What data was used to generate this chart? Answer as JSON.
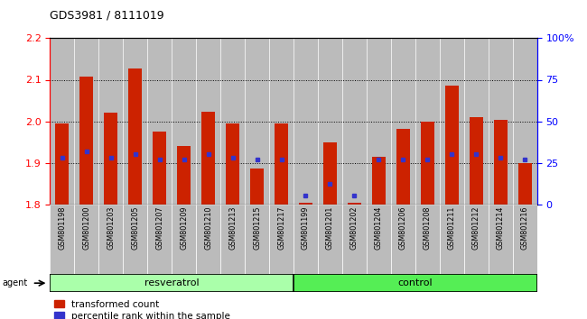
{
  "title": "GDS3981 / 8111019",
  "samples": [
    "GSM801198",
    "GSM801200",
    "GSM801203",
    "GSM801205",
    "GSM801207",
    "GSM801209",
    "GSM801210",
    "GSM801213",
    "GSM801215",
    "GSM801217",
    "GSM801199",
    "GSM801201",
    "GSM801202",
    "GSM801204",
    "GSM801206",
    "GSM801208",
    "GSM801211",
    "GSM801212",
    "GSM801214",
    "GSM801216"
  ],
  "red_values": [
    1.995,
    2.107,
    2.02,
    2.128,
    1.975,
    1.94,
    2.023,
    1.995,
    1.885,
    1.995,
    1.803,
    1.948,
    1.803,
    1.915,
    1.982,
    2.0,
    2.085,
    2.01,
    2.003,
    1.9
  ],
  "blue_values": [
    0.28,
    0.32,
    0.28,
    0.3,
    0.27,
    0.27,
    0.3,
    0.28,
    0.27,
    0.27,
    0.05,
    0.12,
    0.05,
    0.27,
    0.27,
    0.27,
    0.3,
    0.3,
    0.28,
    0.27
  ],
  "group_labels": [
    "resveratrol",
    "control"
  ],
  "group_sizes": [
    10,
    10
  ],
  "ymin": 1.8,
  "ymax": 2.2,
  "yticks": [
    1.8,
    1.9,
    2.0,
    2.1,
    2.2
  ],
  "right_yticks": [
    0,
    25,
    50,
    75,
    100
  ],
  "right_ylabels": [
    "0",
    "25",
    "50",
    "75",
    "100%"
  ],
  "bar_color": "#cc2200",
  "marker_color": "#3333cc",
  "col_bg_color": "#bbbbbb",
  "plot_bg": "#ffffff",
  "group_color_1": "#aaffaa",
  "group_color_2": "#55ee55",
  "legend_red": "transformed count",
  "legend_blue": "percentile rank within the sample"
}
